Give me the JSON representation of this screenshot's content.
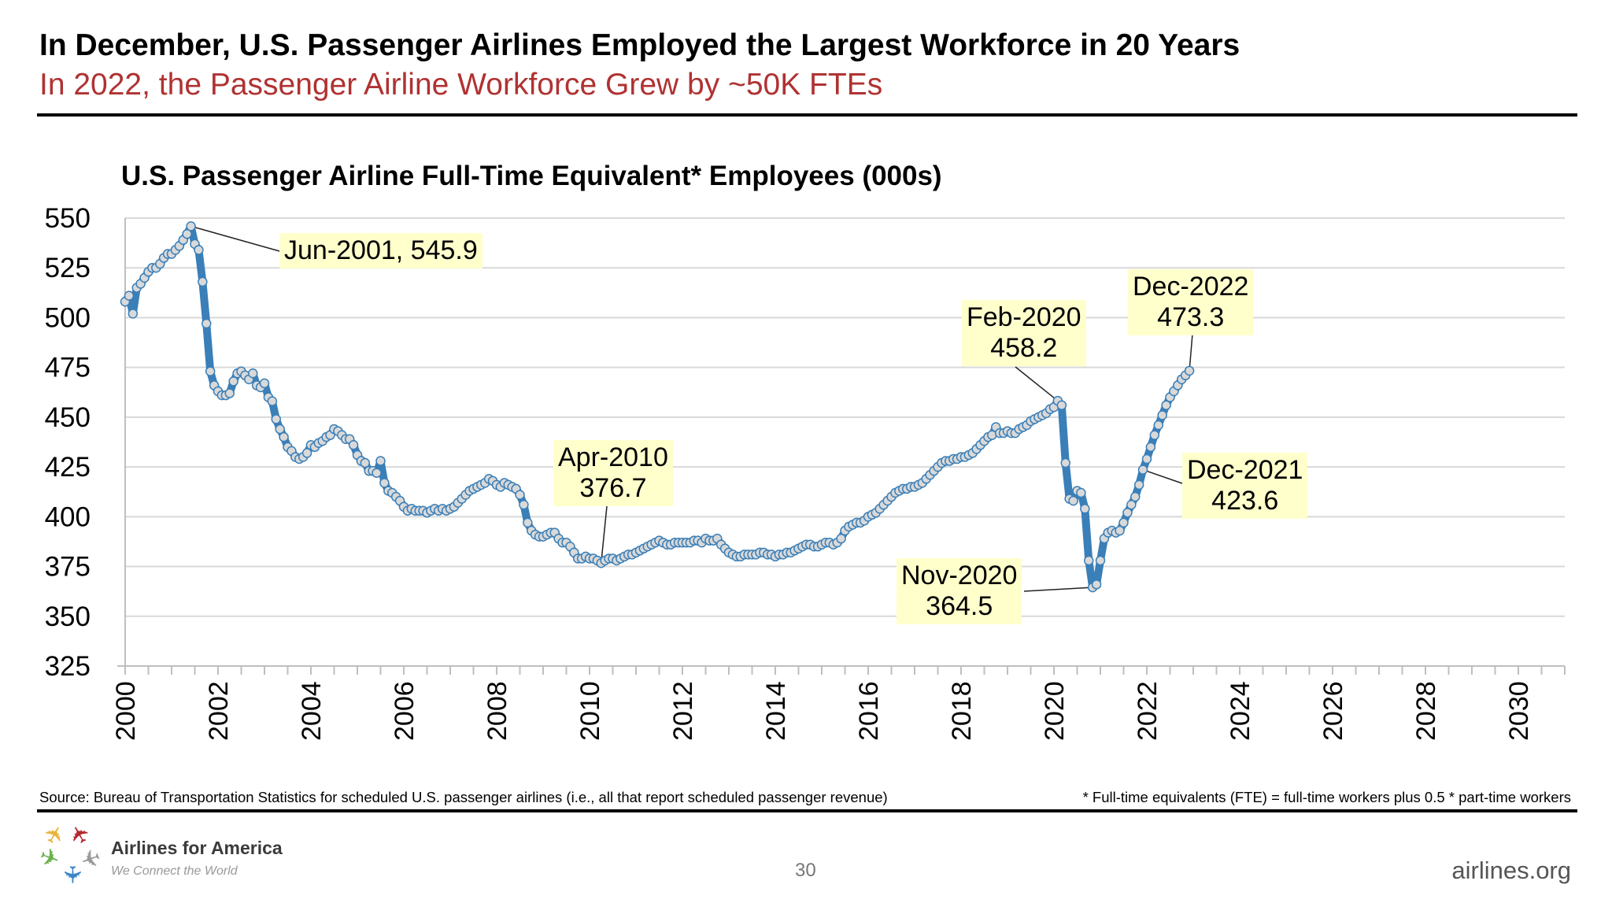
{
  "header": {
    "title": "In December, U.S. Passenger Airlines Employed the Largest Workforce in 20 Years",
    "subtitle": "In 2022, the Passenger Airline Workforce Grew by ~50K FTEs"
  },
  "footer": {
    "source": "Source: Bureau of Transportation Statistics for scheduled U.S. passenger airlines (i.e., all that report scheduled passenger revenue)",
    "footnote": "* Full-time equivalents (FTE) = full-time workers plus 0.5 * part-time workers",
    "logo_name": "Airlines for America",
    "logo_tagline": "We Connect the World",
    "page_number": "30",
    "website": "airlines.org"
  },
  "colors": {
    "subtitle": "#b03232",
    "series_line": "#3a7fb8",
    "marker_fill": "#d9d9d9",
    "annotation_bg": "#ffffcc",
    "gridline": "#d9d9d9"
  },
  "chart_data": {
    "type": "line",
    "title": "U.S. Passenger Airline Full-Time Equivalent* Employees (000s)",
    "xlabel": "",
    "ylabel": "",
    "frequency": "monthly",
    "start": "Jan-2000",
    "end": "Dec-2022",
    "xlim": [
      2000,
      2031
    ],
    "ylim": [
      325,
      550
    ],
    "x_ticks": [
      "2000",
      "2002",
      "2004",
      "2006",
      "2008",
      "2010",
      "2012",
      "2014",
      "2016",
      "2018",
      "2020",
      "2022",
      "2024",
      "2026",
      "2028",
      "2030"
    ],
    "y_ticks": [
      "325",
      "350",
      "375",
      "400",
      "425",
      "450",
      "475",
      "500",
      "525",
      "550"
    ],
    "grid": "horizontal",
    "legend": "none",
    "values": [
      508,
      511,
      502,
      515,
      517,
      520,
      523,
      525,
      525,
      527,
      530,
      532,
      532,
      534,
      536,
      539,
      542,
      545.9,
      537,
      534,
      518,
      497,
      473,
      466,
      463,
      461,
      461,
      462,
      468,
      472,
      473,
      471,
      469,
      472,
      466,
      465,
      467,
      460,
      458,
      449,
      444,
      440,
      435,
      433,
      430,
      429,
      430,
      432,
      436,
      435,
      437,
      438,
      440,
      441,
      444,
      443,
      441,
      439,
      439,
      436,
      431,
      428,
      427,
      423,
      423,
      422,
      428,
      417,
      413,
      412,
      410,
      408,
      405,
      403,
      404,
      403,
      403,
      403,
      402,
      403,
      404,
      403,
      404,
      403,
      404,
      405,
      407,
      409,
      411,
      413,
      414,
      415,
      416,
      417,
      419,
      418,
      416,
      415,
      417,
      416,
      415,
      414,
      411,
      406,
      397,
      393,
      391,
      390,
      390,
      391,
      392,
      392,
      389,
      387,
      387,
      385,
      382,
      379,
      379,
      380,
      379,
      379,
      378,
      376.7,
      378,
      379,
      379,
      378,
      379,
      380,
      381,
      381,
      382,
      383,
      384,
      385,
      386,
      387,
      388,
      387,
      386,
      386,
      387,
      387,
      387,
      387,
      387,
      388,
      388,
      387,
      389,
      388,
      388,
      389,
      386,
      384,
      382,
      381,
      380,
      380,
      381,
      381,
      381,
      381,
      382,
      382,
      381,
      381,
      380,
      381,
      381,
      382,
      382,
      383,
      384,
      385,
      386,
      386,
      385,
      385,
      386,
      387,
      387,
      386,
      387,
      389,
      393,
      395,
      396,
      397,
      397,
      398,
      400,
      401,
      402,
      404,
      406,
      408,
      410,
      412,
      413,
      414,
      414,
      415,
      415,
      416,
      417,
      419,
      421,
      423,
      425,
      427,
      428,
      428,
      429,
      429,
      430,
      430,
      431,
      432,
      434,
      436,
      438,
      440,
      441,
      445,
      442,
      442,
      443,
      442,
      442,
      444,
      445,
      446,
      448,
      449,
      450,
      451,
      452,
      454,
      455,
      458.2,
      456,
      427,
      409,
      408,
      413,
      412,
      404,
      378,
      364.5,
      366,
      378,
      389,
      392,
      393,
      392,
      393,
      397,
      402,
      406,
      410,
      416,
      423.6,
      429,
      435,
      441,
      446,
      451,
      456,
      460,
      463,
      466,
      469,
      471,
      473.3
    ],
    "annotations": [
      {
        "label": "Jun-2001, 545.9",
        "month_index": 17
      },
      {
        "label": "Apr-2010\n376.7",
        "month_index": 123
      },
      {
        "label": "Feb-2020\n458.2",
        "month_index": 241
      },
      {
        "label": "Nov-2020\n364.5",
        "month_index": 250
      },
      {
        "label": "Dec-2021\n423.6",
        "month_index": 263
      },
      {
        "label": "Dec-2022\n473.3",
        "month_index": 275
      }
    ]
  }
}
